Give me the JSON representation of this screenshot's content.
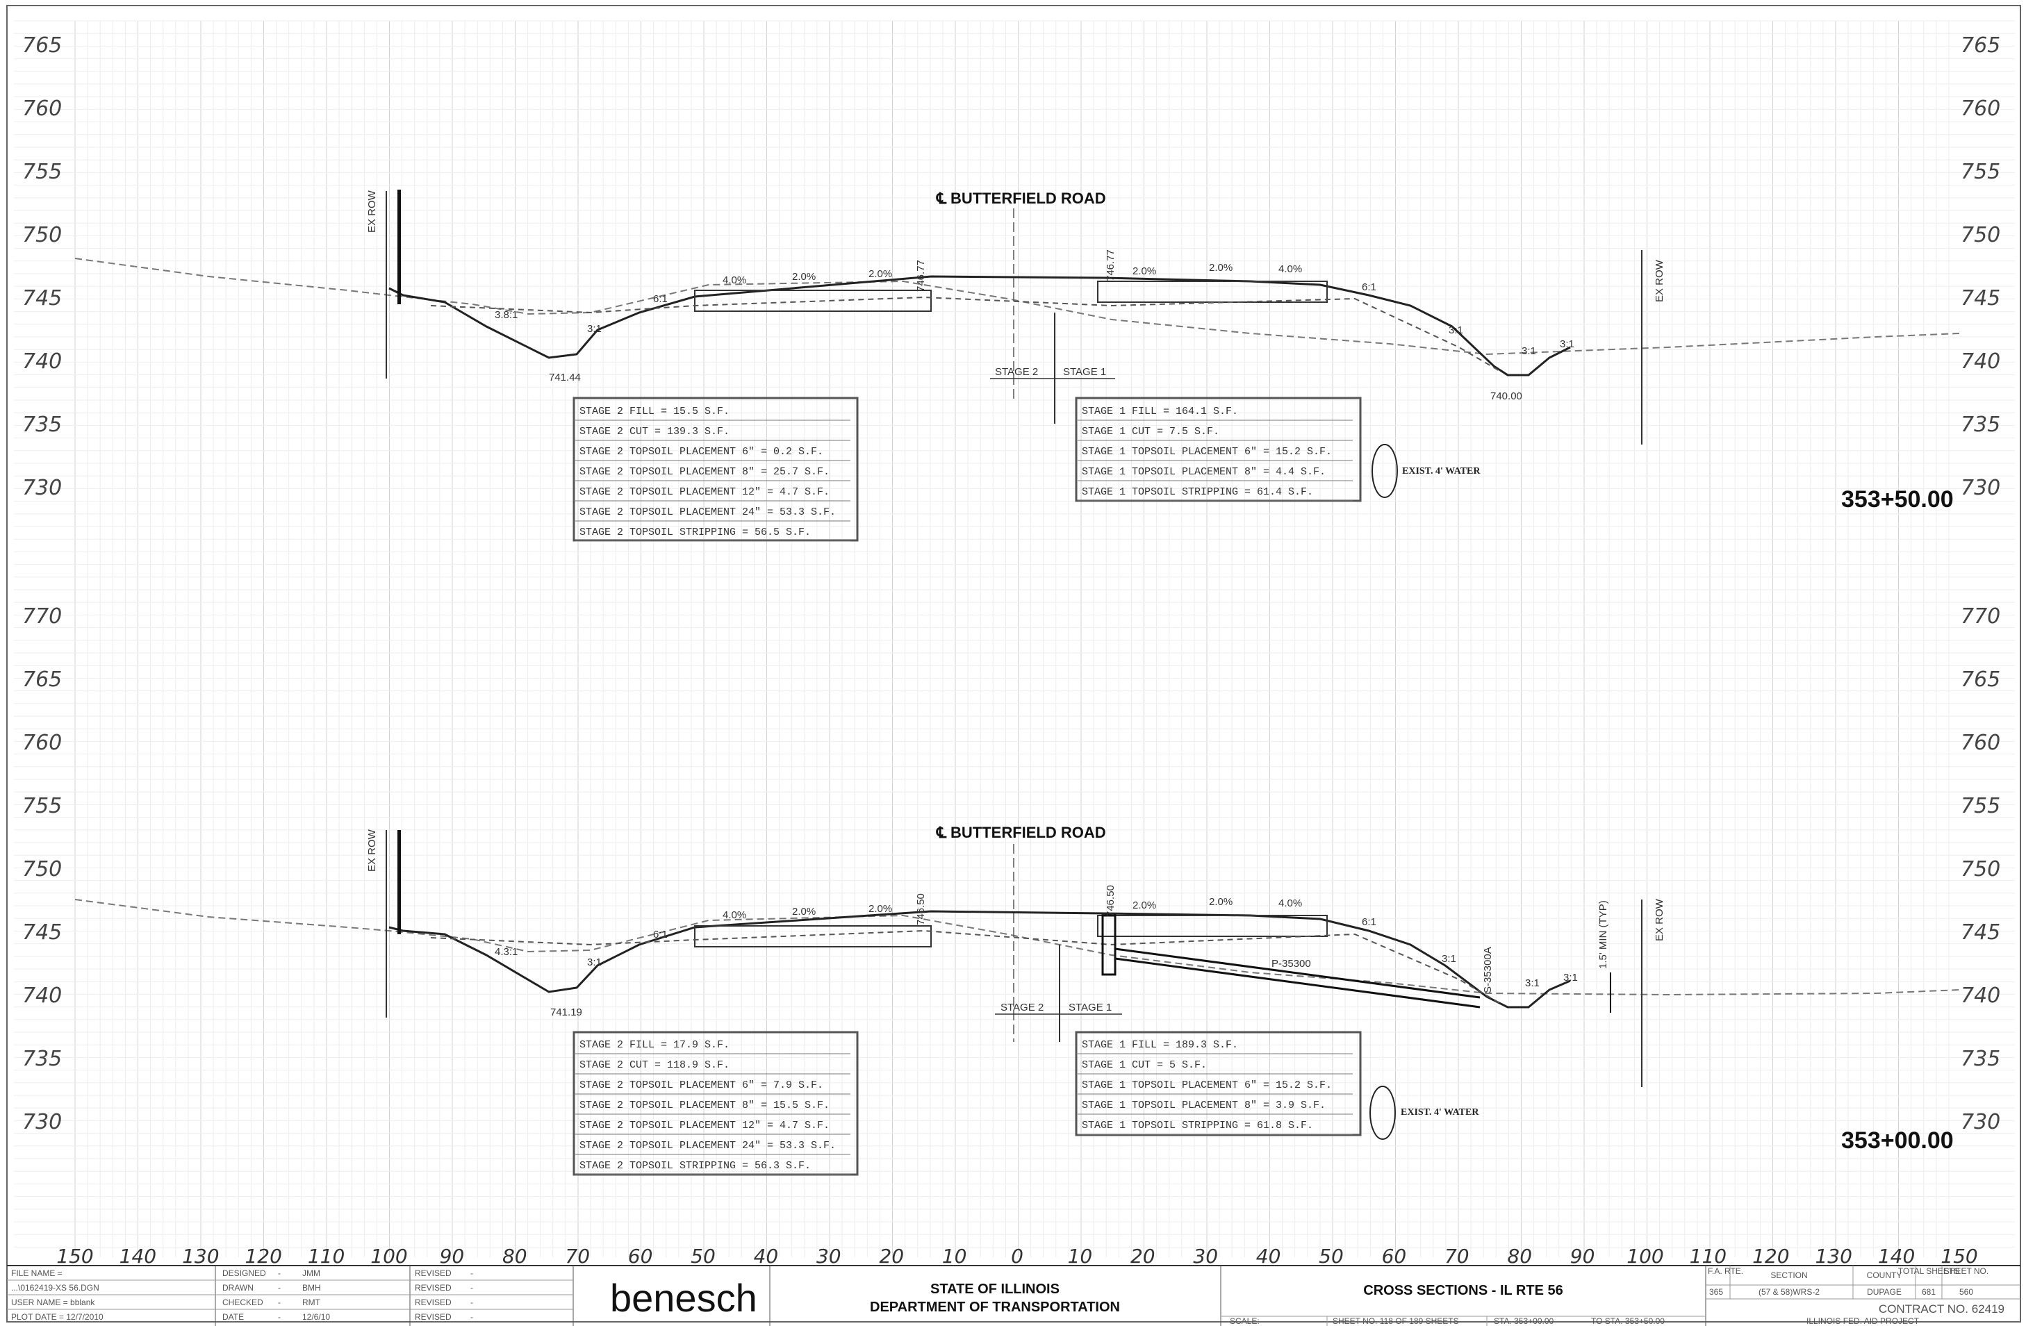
{
  "sections": [
    {
      "id": "upper",
      "elevations": [
        "765",
        "760",
        "755",
        "750",
        "745",
        "740",
        "735",
        "730"
      ],
      "centerline_label": "BUTTERFIELD ROAD",
      "station": "353+50.00",
      "row_left": "EX ROW",
      "row_right": "EX ROW",
      "low_left": "741.44",
      "low_right": "740.00",
      "edge_left": "746.77",
      "edge_right": "746.77",
      "slopes": [
        "3.8:1",
        "3:1",
        "6:1",
        "4.0%",
        "2.0%",
        "2.0%",
        "2.0%",
        "2.0%",
        "4.0%",
        "6:1",
        "3:1",
        "3:1",
        "3:1"
      ],
      "stage_label_2": "STAGE 2",
      "stage_label_1": "STAGE 1",
      "stage2_notes": [
        "STAGE 2 FILL = 15.5 S.F.",
        "STAGE 2 CUT = 139.3 S.F.",
        "STAGE 2 TOPSOIL PLACEMENT 6\" = 0.2 S.F.",
        "STAGE 2 TOPSOIL PLACEMENT 8\" = 25.7 S.F.",
        "STAGE 2 TOPSOIL PLACEMENT 12\" = 4.7 S.F.",
        "STAGE 2 TOPSOIL PLACEMENT 24\" = 53.3 S.F.",
        "STAGE 2 TOPSOIL STRIPPING = 56.5 S.F."
      ],
      "stage1_notes": [
        "STAGE 1 FILL = 164.1 S.F.",
        "STAGE 1 CUT = 7.5 S.F.",
        "STAGE 1 TOPSOIL PLACEMENT 6\" = 15.2 S.F.",
        "STAGE 1 TOPSOIL PLACEMENT 8\" = 4.4 S.F.",
        "STAGE 1 TOPSOIL STRIPPING = 61.4 S.F."
      ],
      "water_label": "EXIST. 4' WATER"
    },
    {
      "id": "lower",
      "elevations": [
        "770",
        "765",
        "760",
        "755",
        "750",
        "745",
        "740",
        "735",
        "730"
      ],
      "centerline_label": "BUTTERFIELD ROAD",
      "station": "353+00.00",
      "row_left": "EX ROW",
      "row_right": "EX ROW",
      "low_left": "741.19",
      "edge_left": "746.50",
      "edge_right": "746.50",
      "slopes": [
        "4.3:1",
        "3:1",
        "6:1",
        "4.0%",
        "2.0%",
        "2.0%",
        "2.0%",
        "2.0%",
        "4.0%",
        "6:1",
        "3:1",
        "3:1",
        "3:1"
      ],
      "pipe_label": "P-35300",
      "structure_label": "S-35300A",
      "min_label": "1.5' MIN (TYP)",
      "stage_label_2": "STAGE 2",
      "stage_label_1": "STAGE 1",
      "stage2_notes": [
        "STAGE 2 FILL = 17.9 S.F.",
        "STAGE 2 CUT = 118.9 S.F.",
        "STAGE 2 TOPSOIL PLACEMENT 6\" = 7.9 S.F.",
        "STAGE 2 TOPSOIL PLACEMENT 8\" = 15.5 S.F.",
        "STAGE 2 TOPSOIL PLACEMENT 12\" = 4.7 S.F.",
        "STAGE 2 TOPSOIL PLACEMENT 24\" = 53.3 S.F.",
        "STAGE 2 TOPSOIL STRIPPING = 56.3 S.F."
      ],
      "stage1_notes": [
        "STAGE 1 FILL = 189.3 S.F.",
        "STAGE 1 CUT = 5 S.F.",
        "STAGE 1 TOPSOIL PLACEMENT 6\" = 15.2 S.F.",
        "STAGE 1 TOPSOIL PLACEMENT 8\" = 3.9 S.F.",
        "STAGE 1 TOPSOIL STRIPPING = 61.8 S.F."
      ],
      "water_label": "EXIST. 4' WATER"
    }
  ],
  "x_axis": [
    "150",
    "140",
    "130",
    "120",
    "110",
    "100",
    "90",
    "80",
    "70",
    "60",
    "50",
    "40",
    "30",
    "20",
    "10",
    "0",
    "10",
    "20",
    "30",
    "40",
    "50",
    "60",
    "70",
    "80",
    "90",
    "100",
    "110",
    "120",
    "130",
    "140",
    "150"
  ],
  "title_block": {
    "file_name_label": "FILE NAME =",
    "file_name": "...\\0162419-XS 56.DGN",
    "user_label": "USER NAME = bblank",
    "plot_date": "PLOT DATE = 12/7/2010",
    "designed_label": "DESIGNED",
    "designed": "JMM",
    "drawn_label": "DRAWN",
    "drawn": "BMH",
    "checked_label": "CHECKED",
    "checked": "RMT",
    "date_label": "DATE",
    "date": "12/6/10",
    "revised_label": "REVISED",
    "firm": "benesch",
    "agency_line1": "STATE OF ILLINOIS",
    "agency_line2": "DEPARTMENT OF TRANSPORTATION",
    "sheet_title": "CROSS SECTIONS - IL RTE 56",
    "scale_label": "SCALE:",
    "sheet_no": "SHEET NO. 118 OF 189 SHEETS",
    "sta_from": "STA. 353+00.00",
    "sta_to": "TO STA. 353+50.00",
    "fa_rte_label": "F.A. RTE.",
    "section_label": "SECTION",
    "county_label": "COUNTY",
    "total_label": "TOTAL SHEETS",
    "sheet_label": "SHEET NO.",
    "fa_rte": "365",
    "section": "(57 & 58)WRS-2",
    "county": "DUPAGE",
    "total": "681",
    "sheet": "560",
    "contract": "CONTRACT NO. 62419",
    "aid_project": "ILLINOIS FED. AID PROJECT"
  }
}
